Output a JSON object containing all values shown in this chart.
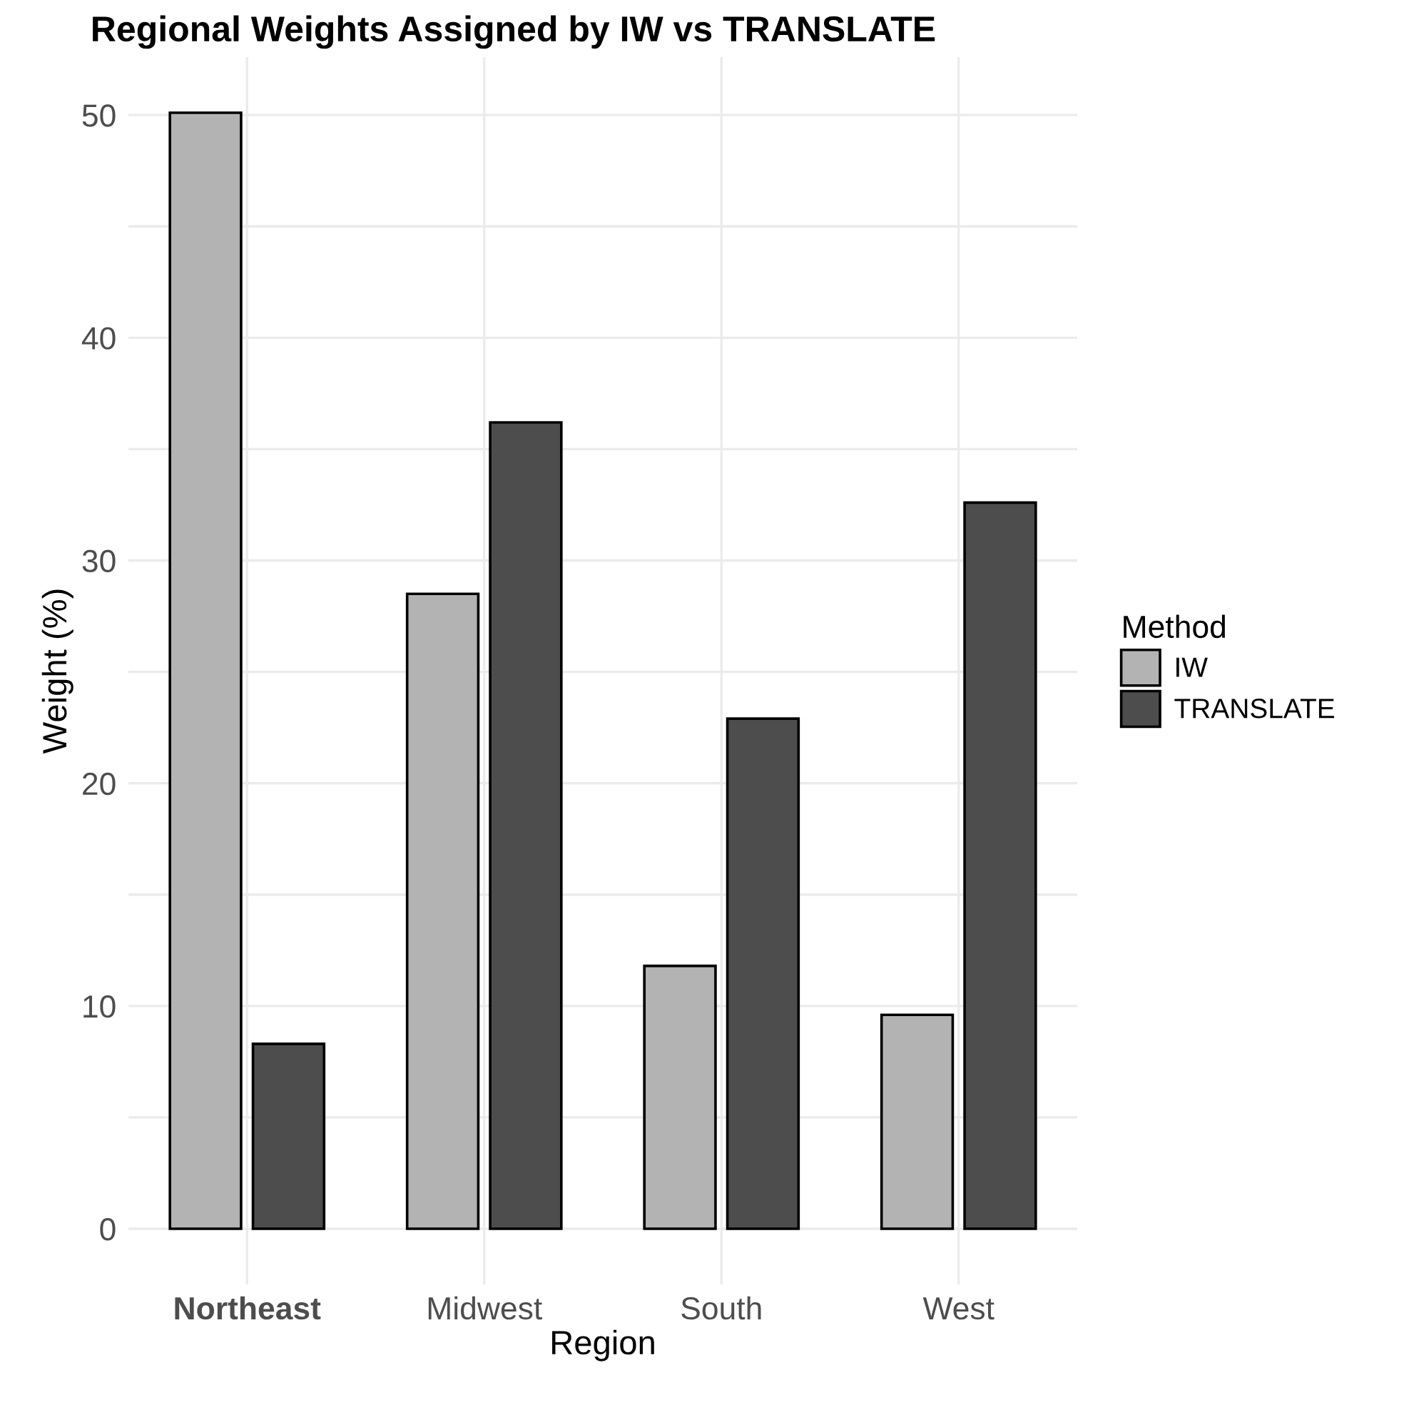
{
  "chart_data": {
    "type": "bar",
    "title": "Regional Weights Assigned by IW vs TRANSLATE",
    "xlabel": "Region",
    "ylabel": "Weight (%)",
    "legend_title": "Method",
    "categories": [
      "Northeast",
      "Midwest",
      "South",
      "West"
    ],
    "series": [
      {
        "name": "IW",
        "color": "#b3b3b3",
        "values": [
          50.1,
          28.5,
          11.8,
          9.6
        ]
      },
      {
        "name": "TRANSLATE",
        "color": "#4d4d4d",
        "values": [
          8.3,
          36.2,
          22.9,
          32.6
        ]
      }
    ],
    "ylim": [
      -2.5,
      52.6
    ],
    "yticks": [
      0,
      {
        "value": 5,
        "label": null
      },
      10,
      {
        "value": 15,
        "label": null
      },
      20,
      {
        "value": 25,
        "label": null
      },
      30,
      {
        "value": 35,
        "label": null
      },
      40,
      {
        "value": 45,
        "label": null
      },
      50
    ],
    "grid": true,
    "legend": "right"
  }
}
